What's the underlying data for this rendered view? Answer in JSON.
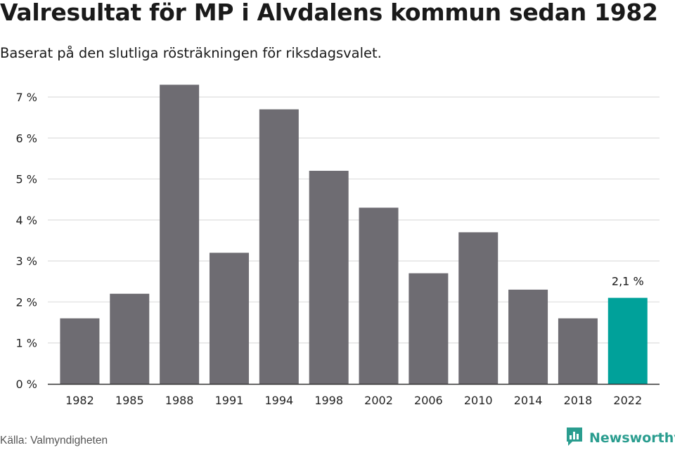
{
  "title": "Valresultat för MP i Alvdalens kommun sedan 1982",
  "subtitle": "Baserat på den slutliga rösträkningen för riksdagsvalet.",
  "source": "Källa: Valmyndigheten",
  "brand": {
    "name": "Newsworthy",
    "icon": "newsworthy-logo-icon"
  },
  "colors": {
    "bar": "#6e6c72",
    "highlight": "#00a19a",
    "grid": "#dedede",
    "axis": "#333333"
  },
  "chart_data": {
    "type": "bar",
    "categories": [
      "1982",
      "1985",
      "1988",
      "1991",
      "1994",
      "1998",
      "2002",
      "2006",
      "2010",
      "2014",
      "2018",
      "2022"
    ],
    "values": [
      1.6,
      2.2,
      7.3,
      3.2,
      6.7,
      5.2,
      4.3,
      2.7,
      3.7,
      2.3,
      1.6,
      2.1
    ],
    "unit": "%",
    "ylim": [
      0,
      7
    ],
    "yticks": [
      0,
      1,
      2,
      3,
      4,
      5,
      6,
      7
    ],
    "ytick_labels": [
      "0 %",
      "1 %",
      "2 %",
      "3 %",
      "4 %",
      "5 %",
      "6 %",
      "7 %"
    ],
    "grid": true,
    "highlight_category": "2022",
    "annotations": [
      {
        "category": "2022",
        "text": "2,1 %"
      }
    ]
  }
}
